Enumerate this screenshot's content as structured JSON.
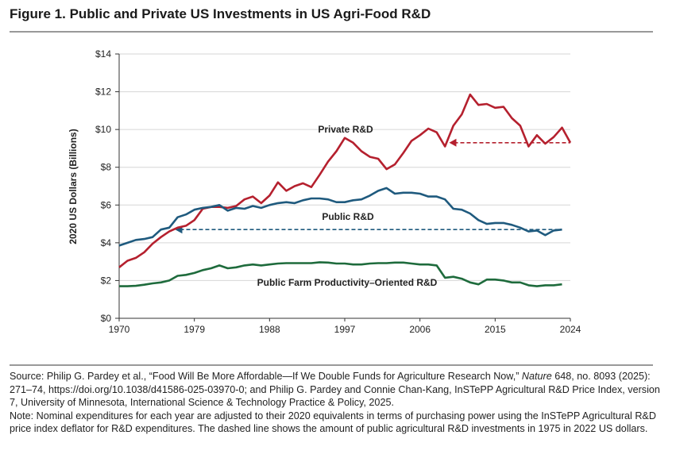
{
  "chart_data": {
    "type": "line",
    "title": "Figure 1. Public and Private US Investments in US Agri-Food R&D",
    "y_label": "2020 US Dollars (Billions)",
    "x": [
      1970,
      1971,
      1972,
      1973,
      1974,
      1975,
      1976,
      1977,
      1978,
      1979,
      1980,
      1981,
      1982,
      1983,
      1984,
      1985,
      1986,
      1987,
      1988,
      1989,
      1990,
      1991,
      1992,
      1993,
      1994,
      1995,
      1996,
      1997,
      1998,
      1999,
      2000,
      2001,
      2002,
      2003,
      2004,
      2005,
      2006,
      2007,
      2008,
      2009,
      2010,
      2011,
      2012,
      2013,
      2014,
      2015,
      2016,
      2017,
      2018,
      2019,
      2020,
      2021,
      2022,
      2023,
      2024
    ],
    "xlim": [
      1970,
      2024
    ],
    "xticks": [
      1970,
      1979,
      1988,
      1997,
      2006,
      2015,
      2024
    ],
    "ylim": [
      0,
      14
    ],
    "yticks": [
      {
        "value": 0,
        "label": "$0"
      },
      {
        "value": 2,
        "label": "$2"
      },
      {
        "value": 4,
        "label": "$4"
      },
      {
        "value": 6,
        "label": "$6"
      },
      {
        "value": 8,
        "label": "$8"
      },
      {
        "value": 10,
        "label": "$10"
      },
      {
        "value": 12,
        "label": "$12"
      },
      {
        "value": 14,
        "label": "$14"
      }
    ],
    "grid": true,
    "series": [
      {
        "name": "Private R&D",
        "color": "#b5202e",
        "values": [
          2.7,
          3.05,
          3.2,
          3.5,
          3.95,
          4.3,
          4.6,
          4.8,
          4.9,
          5.2,
          5.8,
          5.9,
          5.9,
          5.85,
          5.95,
          6.3,
          6.45,
          6.1,
          6.5,
          7.2,
          6.75,
          7.0,
          7.15,
          6.95,
          7.6,
          8.3,
          8.85,
          9.55,
          9.3,
          8.85,
          8.55,
          8.45,
          7.9,
          8.15,
          8.75,
          9.4,
          9.7,
          10.05,
          9.85,
          9.1,
          10.2,
          10.8,
          11.85,
          11.3,
          11.35,
          11.15,
          11.2,
          10.6,
          10.2,
          9.1,
          9.7,
          9.25,
          9.6,
          10.1,
          9.3
        ]
      },
      {
        "name": "Public R&D",
        "color": "#1f5a7e",
        "values": [
          3.85,
          4.0,
          4.15,
          4.2,
          4.3,
          4.7,
          4.8,
          5.35,
          5.5,
          5.75,
          5.85,
          5.9,
          6.0,
          5.7,
          5.85,
          5.8,
          5.95,
          5.85,
          6.0,
          6.1,
          6.15,
          6.1,
          6.25,
          6.35,
          6.35,
          6.3,
          6.15,
          6.15,
          6.25,
          6.3,
          6.5,
          6.75,
          6.9,
          6.6,
          6.65,
          6.65,
          6.6,
          6.45,
          6.45,
          6.3,
          5.8,
          5.75,
          5.55,
          5.2,
          5.0,
          5.05,
          5.05,
          4.95,
          4.8,
          4.6,
          4.65,
          4.4,
          4.65,
          4.7,
          null
        ]
      },
      {
        "name": "Public Farm Productivity–Oriented R&D",
        "color": "#1e6b3c",
        "values": [
          1.7,
          1.7,
          1.72,
          1.78,
          1.85,
          1.9,
          2.0,
          2.25,
          2.3,
          2.4,
          2.55,
          2.65,
          2.8,
          2.65,
          2.7,
          2.8,
          2.85,
          2.8,
          2.85,
          2.9,
          2.92,
          2.92,
          2.92,
          2.92,
          2.97,
          2.95,
          2.9,
          2.9,
          2.85,
          2.85,
          2.9,
          2.92,
          2.92,
          2.95,
          2.95,
          2.9,
          2.85,
          2.85,
          2.8,
          2.15,
          2.2,
          2.1,
          1.9,
          1.8,
          2.05,
          2.05,
          2.0,
          1.9,
          1.9,
          1.75,
          1.7,
          1.75,
          1.75,
          1.8,
          null
        ]
      }
    ],
    "reference_lines": [
      {
        "color": "#b5202e",
        "value": 9.3,
        "x": [
          2009.5,
          2024
        ]
      },
      {
        "color": "#1f5a7e",
        "value": 4.7,
        "x": [
          1976.7,
          2023
        ]
      }
    ]
  },
  "footer": {
    "source": [
      "Source: Philip G. Pardey et al., “Food Will Be More Affordable—If We Double Funds for Agriculture Research Now,” ",
      "Nature",
      " 648, no. 8093 (2025): 271–74, https://doi.org/10.1038/d41586-025-03970-0; and Philip G. Pardey and Connie Chan-Kang, InSTePP Agricultural R&D Price Index, version 7, University of Minnesota, International Science & Technology Practice & Policy, 2025."
    ],
    "note": "Note: Nominal expenditures for each year are adjusted to their 2020 equivalents in terms of purchasing power using the InSTePP Agricultural R&D price index deflator for R&D expenditures. The dashed line shows the amount of public agricultural R&D investments in 1975 in 2022 US dollars."
  }
}
